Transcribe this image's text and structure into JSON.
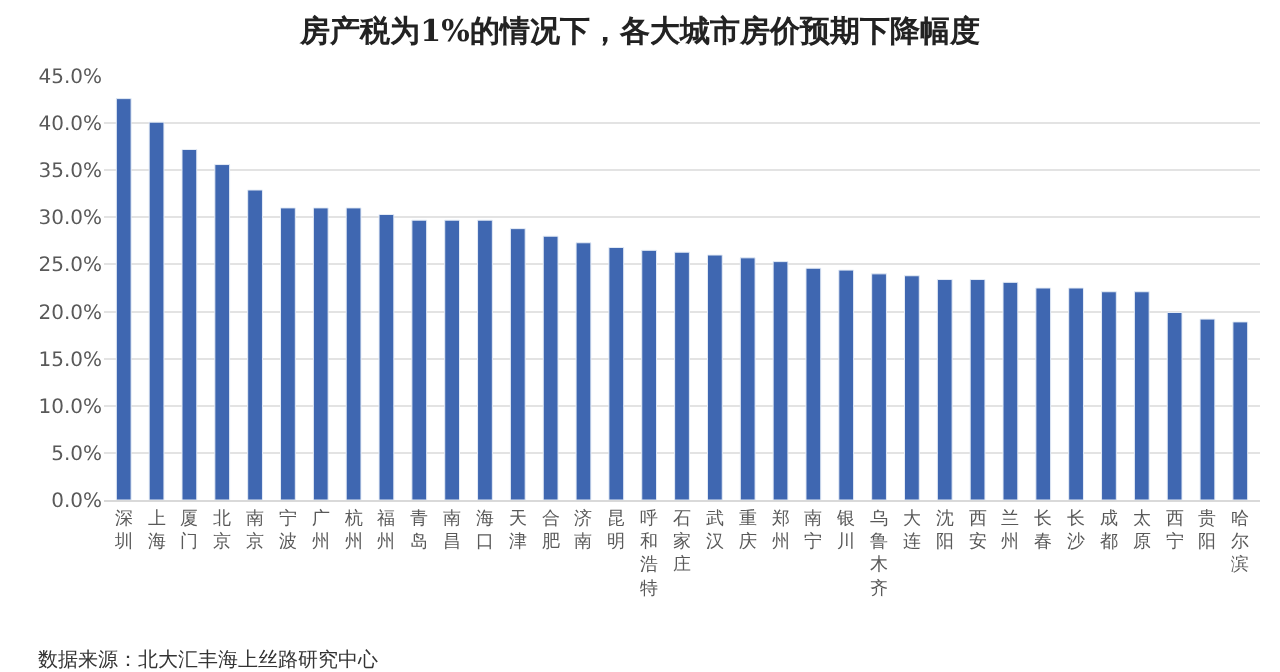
{
  "chart_data": {
    "type": "bar",
    "title": "房产税为1%的情况下，各大城市房价预期下降幅度",
    "categories": [
      "深圳",
      "上海",
      "厦门",
      "北京",
      "南京",
      "宁波",
      "广州",
      "杭州",
      "福州",
      "青岛",
      "南昌",
      "海口",
      "天津",
      "合肥",
      "济南",
      "昆明",
      "呼和浩特",
      "石家庄",
      "武汉",
      "重庆",
      "郑州",
      "南宁",
      "银川",
      "乌鲁木齐",
      "大连",
      "沈阳",
      "西安",
      "兰州",
      "长春",
      "长沙",
      "成都",
      "太原",
      "西宁",
      "贵阳",
      "哈尔滨"
    ],
    "values": [
      42.6,
      40.1,
      37.2,
      35.6,
      32.9,
      31.0,
      31.0,
      31.0,
      30.3,
      29.7,
      29.7,
      29.7,
      28.8,
      28.0,
      27.3,
      26.8,
      26.5,
      26.3,
      26.0,
      25.7,
      25.3,
      24.6,
      24.4,
      24.0,
      23.8,
      23.4,
      23.4,
      23.1,
      22.5,
      22.5,
      22.1,
      22.1,
      19.9,
      19.2,
      18.9
    ],
    "color": "#3f67b1",
    "ylim": [
      0,
      45
    ],
    "yticks": [
      {
        "value": 0,
        "label": "0.0%"
      },
      {
        "value": 5,
        "label": "5.0%"
      },
      {
        "value": 10,
        "label": "10.0%"
      },
      {
        "value": 15,
        "label": "15.0%"
      },
      {
        "value": 20,
        "label": "20.0%"
      },
      {
        "value": 25,
        "label": "25.0%"
      },
      {
        "value": 30,
        "label": "30.0%"
      },
      {
        "value": 35,
        "label": "35.0%"
      },
      {
        "value": 40,
        "label": "40.0%"
      },
      {
        "value": 45,
        "label": "45.0%"
      }
    ],
    "grid": "y",
    "annotations": [
      "数据来源：北大汇丰海上丝路研究中心"
    ]
  }
}
